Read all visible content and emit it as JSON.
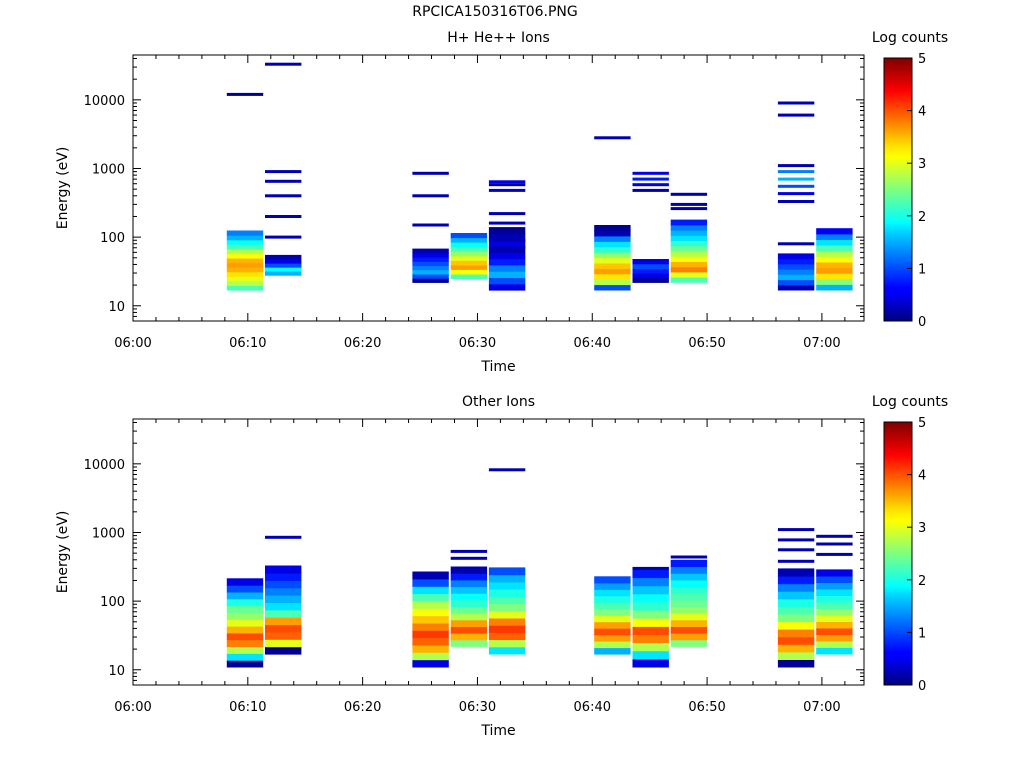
{
  "figure": {
    "title": "RPCICA150316T06.PNG"
  },
  "chart_data": [
    {
      "type": "heatmap",
      "title": "H+ He++ Ions",
      "xlabel": "Time",
      "ylabel": "Energy (eV)",
      "x_ticks": [
        "06:00",
        "06:10",
        "06:20",
        "06:30",
        "06:40",
        "06:50",
        "07:00"
      ],
      "y_ticks": [
        "10",
        "100",
        "1000",
        "10000"
      ],
      "y_scale": "log",
      "ylim": [
        6,
        45000
      ],
      "colorbar": {
        "label": "Log counts",
        "range": [
          0,
          5
        ],
        "ticks": [
          "0",
          "1",
          "2",
          "3",
          "4",
          "5"
        ]
      },
      "columns": [
        {
          "start": "06:08:10",
          "end": "06:11:20",
          "emin": 17,
          "emax": 125,
          "cells": [
            0.45,
            0.55,
            0.6,
            0.65,
            0.7,
            0.72,
            0.7,
            0.62,
            0.55,
            0.45,
            0.38,
            0.3,
            0.25
          ],
          "lines": [
            {
              "energy": 12000,
              "level": 0.02
            }
          ]
        },
        {
          "start": "06:11:30",
          "end": "06:14:40",
          "emin": 28,
          "emax": 55,
          "cells": [
            0.3,
            0.38,
            0.2,
            0.1,
            0.05
          ],
          "lines": [
            {
              "energy": 100,
              "level": 0.05
            },
            {
              "energy": 200,
              "level": 0.05
            },
            {
              "energy": 400,
              "level": 0.05
            },
            {
              "energy": 650,
              "level": 0.05
            },
            {
              "energy": 900,
              "level": 0.05
            },
            {
              "energy": 33000,
              "level": 0.05
            }
          ]
        },
        {
          "start": "06:24:20",
          "end": "06:27:30",
          "emin": 22,
          "emax": 68,
          "cells": [
            0.02,
            0.2,
            0.3,
            0.25,
            0.2,
            0.15,
            0.1,
            0.05
          ],
          "lines": [
            {
              "energy": 150,
              "level": 0.05
            },
            {
              "energy": 400,
              "level": 0.05
            },
            {
              "energy": 850,
              "level": 0.05
            }
          ]
        },
        {
          "start": "06:27:40",
          "end": "06:30:50",
          "emin": 25,
          "emax": 115,
          "cells": [
            0.45,
            0.62,
            0.72,
            0.68,
            0.6,
            0.52,
            0.45,
            0.38,
            0.3,
            0.2
          ],
          "lines": []
        },
        {
          "start": "06:31:00",
          "end": "06:34:10",
          "emin": 17,
          "emax": 140,
          "cells": [
            0.1,
            0.2,
            0.3,
            0.25,
            0.15,
            0.1,
            0.05,
            0.1,
            0.05,
            0.02
          ],
          "lines": [
            {
              "energy": 70,
              "level": 0.05
            },
            {
              "energy": 90,
              "level": 0.05
            },
            {
              "energy": 160,
              "level": 0.05
            },
            {
              "energy": 220,
              "level": 0.05
            },
            {
              "energy": 480,
              "level": 0.08
            },
            {
              "energy": 580,
              "level": 0.05
            },
            {
              "energy": 640,
              "level": 0.1
            }
          ]
        },
        {
          "start": "06:40:10",
          "end": "06:43:20",
          "emin": 17,
          "emax": 150,
          "cells": [
            0.2,
            0.55,
            0.65,
            0.72,
            0.68,
            0.6,
            0.52,
            0.42,
            0.35,
            0.25,
            0.05,
            0.02
          ],
          "lines": [
            {
              "energy": 2800,
              "level": 0.05
            }
          ]
        },
        {
          "start": "06:43:30",
          "end": "06:46:40",
          "emin": 22,
          "emax": 48,
          "cells": [
            0.02,
            0.1,
            0.15,
            0.2,
            0.1
          ],
          "lines": [
            {
              "energy": 480,
              "level": 0.05
            },
            {
              "energy": 580,
              "level": 0.1
            },
            {
              "energy": 700,
              "level": 0.15
            },
            {
              "energy": 850,
              "level": 0.1
            }
          ]
        },
        {
          "start": "06:46:50",
          "end": "06:50:00",
          "emin": 22,
          "emax": 180,
          "cells": [
            0.45,
            0.6,
            0.75,
            0.7,
            0.62,
            0.55,
            0.48,
            0.42,
            0.35,
            0.3,
            0.25,
            0.15
          ],
          "lines": [
            {
              "energy": 260,
              "level": 0.05
            },
            {
              "energy": 300,
              "level": 0.05
            },
            {
              "energy": 420,
              "level": 0.05
            }
          ]
        },
        {
          "start": "06:56:10",
          "end": "06:59:20",
          "emin": 17,
          "emax": 58,
          "cells": [
            0.05,
            0.2,
            0.3,
            0.25,
            0.2,
            0.15,
            0.1
          ],
          "lines": [
            {
              "energy": 80,
              "level": 0.05
            },
            {
              "energy": 330,
              "level": 0.05
            },
            {
              "energy": 430,
              "level": 0.1
            },
            {
              "energy": 550,
              "level": 0.2
            },
            {
              "energy": 700,
              "level": 0.3
            },
            {
              "energy": 900,
              "level": 0.25
            },
            {
              "energy": 1100,
              "level": 0.05
            },
            {
              "energy": 6000,
              "level": 0.05
            },
            {
              "energy": 9000,
              "level": 0.05
            }
          ]
        },
        {
          "start": "06:59:30",
          "end": "07:02:40",
          "emin": 17,
          "emax": 135,
          "cells": [
            0.3,
            0.5,
            0.65,
            0.72,
            0.7,
            0.62,
            0.55,
            0.45,
            0.35,
            0.25,
            0.12
          ],
          "lines": []
        }
      ]
    },
    {
      "type": "heatmap",
      "title": "Other Ions",
      "xlabel": "Time",
      "ylabel": "Energy (eV)",
      "x_ticks": [
        "06:00",
        "06:10",
        "06:20",
        "06:30",
        "06:40",
        "06:50",
        "07:00"
      ],
      "y_ticks": [
        "10",
        "100",
        "1000",
        "10000"
      ],
      "y_scale": "log",
      "ylim": [
        6,
        45000
      ],
      "colorbar": {
        "label": "Log counts",
        "range": [
          0,
          5
        ],
        "ticks": [
          "0",
          "1",
          "2",
          "3",
          "4",
          "5"
        ]
      },
      "columns": [
        {
          "start": "06:08:10",
          "end": "06:11:20",
          "emin": 11,
          "emax": 215,
          "cells": [
            0.02,
            0.35,
            0.55,
            0.75,
            0.8,
            0.7,
            0.6,
            0.52,
            0.48,
            0.4,
            0.3,
            0.2,
            0.1
          ],
          "lines": []
        },
        {
          "start": "06:11:30",
          "end": "06:14:40",
          "emin": 17,
          "emax": 330,
          "cells": [
            0.02,
            0.6,
            0.78,
            0.8,
            0.72,
            0.45,
            0.35,
            0.3,
            0.25,
            0.2,
            0.15,
            0.1
          ],
          "lines": [
            {
              "energy": 850,
              "level": 0.05
            }
          ]
        },
        {
          "start": "06:24:20",
          "end": "06:27:30",
          "emin": 11,
          "emax": 270,
          "cells": [
            0.1,
            0.55,
            0.7,
            0.78,
            0.82,
            0.75,
            0.68,
            0.62,
            0.55,
            0.45,
            0.35,
            0.2,
            0.05
          ],
          "lines": []
        },
        {
          "start": "06:27:40",
          "end": "06:30:50",
          "emin": 22,
          "emax": 320,
          "cells": [
            0.5,
            0.7,
            0.8,
            0.72,
            0.55,
            0.48,
            0.42,
            0.38,
            0.32,
            0.25,
            0.15,
            0.05
          ],
          "lines": [
            {
              "energy": 420,
              "level": 0.05
            },
            {
              "energy": 530,
              "level": 0.05
            }
          ]
        },
        {
          "start": "06:31:00",
          "end": "06:34:10",
          "emin": 17,
          "emax": 310,
          "cells": [
            0.35,
            0.55,
            0.78,
            0.82,
            0.75,
            0.6,
            0.5,
            0.45,
            0.4,
            0.35,
            0.3,
            0.2
          ],
          "lines": [
            {
              "energy": 8200,
              "level": 0.05
            }
          ]
        },
        {
          "start": "06:40:10",
          "end": "06:43:20",
          "emin": 17,
          "emax": 230,
          "cells": [
            0.3,
            0.55,
            0.72,
            0.8,
            0.72,
            0.6,
            0.5,
            0.45,
            0.4,
            0.35,
            0.28,
            0.2
          ],
          "lines": []
        },
        {
          "start": "06:43:30",
          "end": "06:46:40",
          "emin": 11,
          "emax": 290,
          "cells": [
            0.1,
            0.35,
            0.55,
            0.75,
            0.8,
            0.62,
            0.5,
            0.42,
            0.38,
            0.32,
            0.25,
            0.15
          ],
          "lines": [
            {
              "energy": 300,
              "level": 0.05
            }
          ]
        },
        {
          "start": "06:46:50",
          "end": "06:50:00",
          "emin": 22,
          "emax": 400,
          "cells": [
            0.5,
            0.72,
            0.8,
            0.7,
            0.6,
            0.52,
            0.48,
            0.45,
            0.42,
            0.38,
            0.32,
            0.25,
            0.15
          ],
          "lines": [
            {
              "energy": 440,
              "level": 0.05
            }
          ]
        },
        {
          "start": "06:56:10",
          "end": "06:59:20",
          "emin": 11,
          "emax": 300,
          "cells": [
            0.02,
            0.55,
            0.7,
            0.8,
            0.75,
            0.62,
            0.5,
            0.45,
            0.4,
            0.32,
            0.25,
            0.15,
            0.05
          ],
          "lines": [
            {
              "energy": 380,
              "level": 0.05
            },
            {
              "energy": 560,
              "level": 0.05
            },
            {
              "energy": 780,
              "level": 0.05
            },
            {
              "energy": 1100,
              "level": 0.05
            }
          ]
        },
        {
          "start": "06:59:30",
          "end": "07:02:40",
          "emin": 17,
          "emax": 290,
          "cells": [
            0.35,
            0.55,
            0.72,
            0.8,
            0.7,
            0.6,
            0.52,
            0.45,
            0.4,
            0.35,
            0.28,
            0.2,
            0.1
          ],
          "lines": [
            {
              "energy": 480,
              "level": 0.05
            },
            {
              "energy": 680,
              "level": 0.05
            },
            {
              "energy": 880,
              "level": 0.05
            }
          ]
        }
      ]
    }
  ]
}
